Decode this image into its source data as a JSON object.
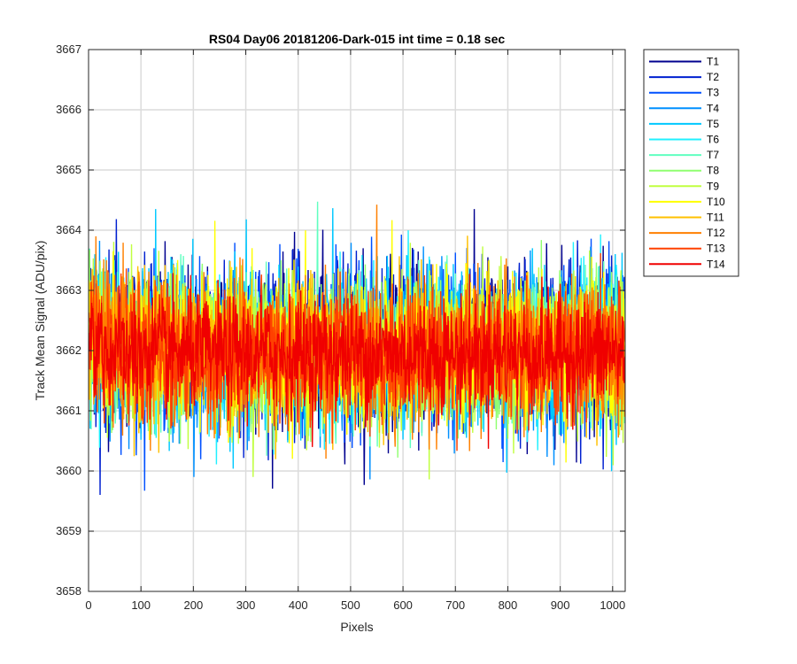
{
  "chart_data": {
    "type": "line",
    "title": "RS04 Day06 20181206-Dark-015 int time = 0.18 sec",
    "xlabel": "Pixels",
    "ylabel": "Track Mean Signal (ADU/pix)",
    "xlim": [
      0,
      1024
    ],
    "ylim": [
      3658,
      3667
    ],
    "xticks": [
      0,
      100,
      200,
      300,
      400,
      500,
      600,
      700,
      800,
      900,
      1000
    ],
    "yticks": [
      3658,
      3659,
      3660,
      3661,
      3662,
      3663,
      3664,
      3665,
      3666,
      3667
    ],
    "grid": true,
    "legend_position": "outside-top-right",
    "x_start": 1,
    "x_end": 1024,
    "series": [
      {
        "name": "T1",
        "color": "#00008f",
        "center": 3662.1,
        "spread": 1.25
      },
      {
        "name": "T2",
        "color": "#0020d0",
        "center": 3662.1,
        "spread": 1.2
      },
      {
        "name": "T3",
        "color": "#0050ff",
        "center": 3662.05,
        "spread": 1.15
      },
      {
        "name": "T4",
        "color": "#0090ff",
        "center": 3662.0,
        "spread": 1.15
      },
      {
        "name": "T5",
        "color": "#00c8ff",
        "center": 3662.0,
        "spread": 1.2
      },
      {
        "name": "T6",
        "color": "#20f0ff",
        "center": 3662.0,
        "spread": 1.1
      },
      {
        "name": "T7",
        "color": "#60ffc0",
        "center": 3662.0,
        "spread": 1.05
      },
      {
        "name": "T8",
        "color": "#90ff70",
        "center": 3662.0,
        "spread": 1.1
      },
      {
        "name": "T9",
        "color": "#c0ff40",
        "center": 3662.0,
        "spread": 1.15
      },
      {
        "name": "T10",
        "color": "#ffff00",
        "center": 3662.0,
        "spread": 1.1
      },
      {
        "name": "T11",
        "color": "#ffc000",
        "center": 3662.0,
        "spread": 1.05
      },
      {
        "name": "T12",
        "color": "#ff8000",
        "center": 3661.95,
        "spread": 1.05
      },
      {
        "name": "T13",
        "color": "#ff4000",
        "center": 3661.95,
        "spread": 1.0
      },
      {
        "name": "T14",
        "color": "#f00000",
        "center": 3661.95,
        "spread": 0.85
      }
    ]
  }
}
